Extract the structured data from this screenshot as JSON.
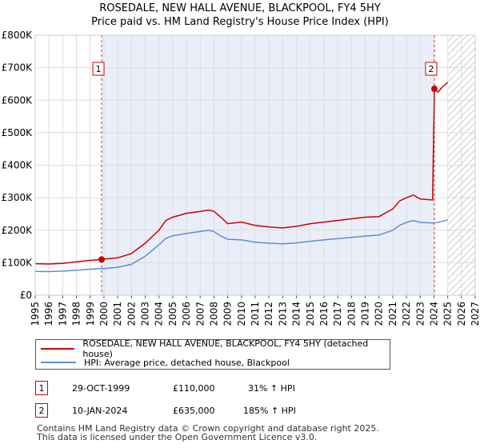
{
  "chart_data": {
    "type": "line",
    "title": "ROSEDALE, NEW HALL AVENUE, BLACKPOOL, FY4 5HY",
    "subtitle": "Price paid vs. HM Land Registry's House Price Index (HPI)",
    "xlim": [
      1995,
      2027
    ],
    "ylim": [
      0,
      800000
    ],
    "x_ticks": [
      "1995",
      "1996",
      "1997",
      "1998",
      "1999",
      "2000",
      "2001",
      "2002",
      "2003",
      "2004",
      "2005",
      "2006",
      "2007",
      "2008",
      "2009",
      "2010",
      "2011",
      "2012",
      "2013",
      "2014",
      "2015",
      "2016",
      "2017",
      "2018",
      "2019",
      "2020",
      "2021",
      "2022",
      "2023",
      "2024",
      "2025",
      "2026",
      "2027"
    ],
    "y_ticks": [
      {
        "value": 0,
        "label": "£0"
      },
      {
        "value": 100000,
        "label": "£100K"
      },
      {
        "value": 200000,
        "label": "£200K"
      },
      {
        "value": 300000,
        "label": "£300K"
      },
      {
        "value": 400000,
        "label": "£400K"
      },
      {
        "value": 500000,
        "label": "£500K"
      },
      {
        "value": 600000,
        "label": "£600K"
      },
      {
        "value": 700000,
        "label": "£700K"
      },
      {
        "value": 800000,
        "label": "£800K"
      }
    ],
    "shade_range": [
      1999.83,
      2024.03
    ],
    "forecast_start": 2025.0,
    "series": [
      {
        "name": "ROSEDALE, NEW HALL AVENUE, BLACKPOOL, FY4 5HY (detached house)",
        "color": "#cc0000",
        "points": [
          [
            1995,
            97000
          ],
          [
            1996,
            96000
          ],
          [
            1997,
            98000
          ],
          [
            1998,
            103000
          ],
          [
            1999,
            107000
          ],
          [
            1999.83,
            110000
          ],
          [
            2000,
            111000
          ],
          [
            2001,
            115000
          ],
          [
            2002,
            128000
          ],
          [
            2003,
            160000
          ],
          [
            2004,
            200000
          ],
          [
            2004.5,
            230000
          ],
          [
            2005,
            240000
          ],
          [
            2006,
            252000
          ],
          [
            2007,
            258000
          ],
          [
            2007.6,
            262000
          ],
          [
            2008,
            258000
          ],
          [
            2008.5,
            240000
          ],
          [
            2009,
            220000
          ],
          [
            2010,
            225000
          ],
          [
            2011,
            215000
          ],
          [
            2012,
            210000
          ],
          [
            2013,
            207000
          ],
          [
            2014,
            212000
          ],
          [
            2015,
            220000
          ],
          [
            2016,
            225000
          ],
          [
            2017,
            230000
          ],
          [
            2018,
            235000
          ],
          [
            2019,
            240000
          ],
          [
            2020,
            242000
          ],
          [
            2021,
            265000
          ],
          [
            2021.5,
            290000
          ],
          [
            2022,
            300000
          ],
          [
            2022.5,
            308000
          ],
          [
            2023,
            296000
          ],
          [
            2023.9,
            293000
          ],
          [
            2024.03,
            635000
          ],
          [
            2024.3,
            625000
          ],
          [
            2024.6,
            640000
          ],
          [
            2025,
            655000
          ]
        ]
      },
      {
        "name": "HPI: Average price, detached house, Blackpool",
        "color": "#5b8fd6",
        "points": [
          [
            1995,
            73000
          ],
          [
            1996,
            72500
          ],
          [
            1997,
            74000
          ],
          [
            1998,
            77000
          ],
          [
            1999,
            80000
          ],
          [
            2000,
            82000
          ],
          [
            2001,
            86000
          ],
          [
            2002,
            95000
          ],
          [
            2003,
            120000
          ],
          [
            2004,
            155000
          ],
          [
            2004.5,
            175000
          ],
          [
            2005,
            183000
          ],
          [
            2006,
            190000
          ],
          [
            2007,
            196000
          ],
          [
            2007.6,
            200000
          ],
          [
            2008,
            196000
          ],
          [
            2008.5,
            182000
          ],
          [
            2009,
            172000
          ],
          [
            2010,
            170000
          ],
          [
            2011,
            163000
          ],
          [
            2012,
            160000
          ],
          [
            2013,
            158000
          ],
          [
            2014,
            161000
          ],
          [
            2015,
            166000
          ],
          [
            2016,
            170000
          ],
          [
            2017,
            174000
          ],
          [
            2018,
            178000
          ],
          [
            2019,
            182000
          ],
          [
            2020,
            185000
          ],
          [
            2021,
            200000
          ],
          [
            2021.5,
            215000
          ],
          [
            2022,
            224000
          ],
          [
            2022.5,
            230000
          ],
          [
            2023,
            224000
          ],
          [
            2024,
            222000
          ],
          [
            2024.5,
            226000
          ],
          [
            2025,
            232000
          ]
        ]
      }
    ],
    "sales": [
      {
        "id": "1",
        "x": 1999.83,
        "y": 110000
      },
      {
        "id": "2",
        "x": 2024.03,
        "y": 635000
      }
    ]
  },
  "legend": {
    "property_label": "ROSEDALE, NEW HALL AVENUE, BLACKPOOL, FY4 5HY (detached house)",
    "hpi_label": "HPI: Average price, detached house, Blackpool",
    "property_color": "#cc0000",
    "hpi_color": "#5b8fd6"
  },
  "transactions": [
    {
      "id": "1",
      "date": "29-OCT-1999",
      "price": "£110,000",
      "hpi": "31% ↑ HPI"
    },
    {
      "id": "2",
      "date": "10-JAN-2024",
      "price": "£635,000",
      "hpi": "185% ↑ HPI"
    }
  ],
  "footer": {
    "line1": "Contains HM Land Registry data © Crown copyright and database right 2025.",
    "line2": "This data is licensed under the Open Government Licence v3.0."
  }
}
